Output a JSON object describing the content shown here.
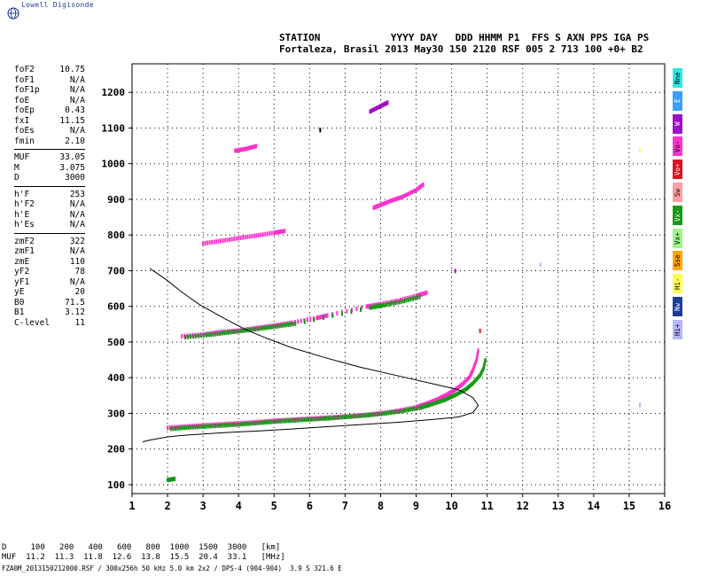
{
  "logo_text": "Lowell Digisonde",
  "header": {
    "line1": "STATION            YYYY DAY   DDD HHMM P1  FFS S AXN PPS IGA PS",
    "line2": "Fortaleza, Brasil 2013 May30 150 2120 RSF 005 2 713 100 +0+ B2"
  },
  "params_group1": [
    {
      "name": "foF2",
      "value": "10.75"
    },
    {
      "name": "foF1",
      "value": "N/A"
    },
    {
      "name": "foF1p",
      "value": "N/A"
    },
    {
      "name": "foE",
      "value": "N/A"
    },
    {
      "name": "foEp",
      "value": "0.43"
    },
    {
      "name": "fxI",
      "value": "11.15"
    },
    {
      "name": "foEs",
      "value": "N/A"
    },
    {
      "name": "fmin",
      "value": "2.10"
    }
  ],
  "params_group2": [
    {
      "name": "MUF",
      "value": "33.05"
    },
    {
      "name": "M",
      "value": "3.075"
    },
    {
      "name": "D",
      "value": "3000"
    }
  ],
  "params_group3": [
    {
      "name": "h'F",
      "value": "253"
    },
    {
      "name": "h'F2",
      "value": "N/A"
    },
    {
      "name": "h'E",
      "value": "N/A"
    },
    {
      "name": "h'Es",
      "value": "N/A"
    }
  ],
  "params_group4": [
    {
      "name": "zmF2",
      "value": "322"
    },
    {
      "name": "zmF1",
      "value": "N/A"
    },
    {
      "name": "zmE",
      "value": "110"
    },
    {
      "name": "yF2",
      "value": "78"
    },
    {
      "name": "yF1",
      "value": "N/A"
    },
    {
      "name": "yE",
      "value": "20"
    },
    {
      "name": "B0",
      "value": "71.5"
    },
    {
      "name": "B1",
      "value": "3.12"
    },
    {
      "name": "C-level",
      "value": "11"
    }
  ],
  "legend": [
    {
      "label": "Nne",
      "color": "#2ee6e6"
    },
    {
      "label": "E",
      "color": "#3aa0ff"
    },
    {
      "label": "W",
      "color": "#a010c8"
    },
    {
      "label": "Vo-",
      "color": "#ff33cc"
    },
    {
      "label": "Vo+",
      "color": "#e01020"
    },
    {
      "label": "Sw",
      "color": "#ff9da0"
    },
    {
      "label": "Vx-",
      "color": "#159a15"
    },
    {
      "label": "Vx+",
      "color": "#9ef58c"
    },
    {
      "label": "Sse",
      "color": "#ffa400"
    },
    {
      "label": "Hi-",
      "color": "#ffff55"
    },
    {
      "label": "Nw",
      "color": "#1c3d9a"
    },
    {
      "label": "Hi+",
      "color": "#b6b6ff"
    }
  ],
  "footer": {
    "d_row": "D     100   200   400   600   800  1000  1500  3000   [km]",
    "muf_row": "MUF  11.2  11.3  11.8  12.6  13.8  15.5  20.4  33.1   [MHz]",
    "file_row": "FZA0M_2013150212000.RSF / 300x256h 50 kHz 5.0 km 2x2 / DPS-4 (904-904)  3.9 S 321.6 E"
  },
  "chart_data": {
    "type": "scatter",
    "xlim": [
      1,
      16
    ],
    "ylim": [
      75,
      1280
    ],
    "x_ticks": [
      1,
      2,
      3,
      4,
      5,
      6,
      7,
      8,
      9,
      10,
      11,
      12,
      13,
      14,
      15,
      16
    ],
    "y_ticks": [
      100,
      200,
      300,
      400,
      500,
      600,
      700,
      800,
      900,
      1000,
      1100,
      1200
    ],
    "grid": true,
    "profile": [
      [
        10.75,
        322
      ],
      [
        10.6,
        344
      ],
      [
        10.2,
        366
      ],
      [
        9.5,
        382
      ],
      [
        8.5,
        405
      ],
      [
        7.4,
        430
      ],
      [
        6.4,
        457
      ],
      [
        5.5,
        484
      ],
      [
        4.8,
        510
      ],
      [
        4.2,
        535
      ],
      [
        3.6,
        566
      ],
      [
        2.9,
        605
      ],
      [
        2.4,
        640
      ],
      [
        2.0,
        672
      ],
      [
        1.7,
        693
      ],
      [
        1.5,
        706
      ],
      [
        10.75,
        322
      ],
      [
        10.6,
        302
      ],
      [
        10.2,
        290
      ],
      [
        9.5,
        283
      ],
      [
        8.5,
        275
      ],
      [
        7.4,
        268
      ],
      [
        6.4,
        262
      ],
      [
        5.5,
        256
      ],
      [
        4.6,
        251
      ],
      [
        3.8,
        247
      ],
      [
        3.0,
        242
      ],
      [
        2.4,
        238
      ],
      [
        2.0,
        234
      ],
      [
        1.5,
        225
      ],
      [
        1.3,
        220
      ]
    ],
    "traces": [
      {
        "color": "#ff33cc",
        "points": [
          [
            2.0,
            258
          ],
          [
            2.5,
            262
          ],
          [
            3.0,
            265
          ],
          [
            3.5,
            268
          ],
          [
            4.0,
            271
          ],
          [
            4.5,
            274
          ],
          [
            5.0,
            278
          ],
          [
            5.5,
            281
          ],
          [
            6.0,
            284
          ],
          [
            6.5,
            287
          ],
          [
            7.0,
            290
          ],
          [
            7.5,
            294
          ],
          [
            8.0,
            299
          ],
          [
            8.5,
            306
          ],
          [
            9.0,
            316
          ],
          [
            9.3,
            326
          ],
          [
            9.6,
            338
          ],
          [
            9.9,
            353
          ],
          [
            10.1,
            365
          ],
          [
            10.3,
            380
          ],
          [
            10.5,
            400
          ],
          [
            10.6,
            420
          ],
          [
            10.7,
            448
          ],
          [
            10.75,
            475
          ]
        ]
      },
      {
        "color": "#159a15",
        "points": [
          [
            2.1,
            255
          ],
          [
            2.6,
            259
          ],
          [
            3.1,
            262
          ],
          [
            3.6,
            265
          ],
          [
            4.1,
            268
          ],
          [
            4.6,
            272
          ],
          [
            5.1,
            276
          ],
          [
            5.6,
            279
          ],
          [
            6.1,
            282
          ],
          [
            6.6,
            285
          ],
          [
            7.1,
            289
          ],
          [
            7.6,
            293
          ],
          [
            8.1,
            298
          ],
          [
            8.6,
            305
          ],
          [
            9.1,
            314
          ],
          [
            9.4,
            323
          ],
          [
            9.8,
            336
          ],
          [
            10.1,
            350
          ],
          [
            10.4,
            366
          ],
          [
            10.6,
            383
          ],
          [
            10.8,
            405
          ],
          [
            10.9,
            425
          ],
          [
            10.95,
            448
          ]
        ]
      },
      {
        "color": "#ff33cc",
        "points": [
          [
            2.4,
            515
          ],
          [
            3.0,
            520
          ],
          [
            3.5,
            527
          ],
          [
            4.0,
            531
          ],
          [
            4.5,
            538
          ],
          [
            5.0,
            545
          ],
          [
            5.5,
            553
          ],
          [
            6.2,
            566
          ],
          [
            6.5,
            573
          ],
          [
            7.6,
            598
          ],
          [
            8.0,
            605
          ],
          [
            8.5,
            615
          ],
          [
            9.0,
            628
          ],
          [
            9.3,
            637
          ]
        ]
      },
      {
        "color": "#159a15",
        "points": [
          [
            2.5,
            512
          ],
          [
            3.1,
            518
          ],
          [
            3.6,
            524
          ],
          [
            4.1,
            530
          ],
          [
            4.6,
            536
          ],
          [
            5.1,
            543
          ],
          [
            5.6,
            550
          ],
          [
            7.7,
            595
          ],
          [
            8.1,
            602
          ],
          [
            8.6,
            612
          ],
          [
            9.1,
            625
          ]
        ]
      },
      {
        "color": "#ff33cc",
        "points": [
          [
            3.0,
            775
          ],
          [
            3.5,
            782
          ],
          [
            4.0,
            790
          ],
          [
            4.5,
            797
          ],
          [
            5.0,
            805
          ],
          [
            5.3,
            810
          ]
        ]
      },
      {
        "color": "#ff33cc",
        "points": [
          [
            7.8,
            875
          ],
          [
            8.0,
            883
          ],
          [
            8.3,
            895
          ],
          [
            8.6,
            905
          ],
          [
            9.0,
            925
          ],
          [
            9.2,
            940
          ]
        ]
      },
      {
        "color": "#ff33cc",
        "points": [
          [
            3.9,
            1035
          ],
          [
            4.2,
            1040
          ],
          [
            4.5,
            1048
          ]
        ]
      },
      {
        "color": "#a010c8",
        "points": [
          [
            7.7,
            1145
          ],
          [
            8.0,
            1160
          ],
          [
            8.2,
            1170
          ]
        ]
      },
      {
        "color": "#159a15",
        "points": [
          [
            2.0,
            112
          ],
          [
            2.2,
            115
          ]
        ]
      }
    ],
    "isolated": [
      {
        "x": 6.3,
        "y": 1093,
        "color": "#000000"
      },
      {
        "x": 10.1,
        "y": 698,
        "color": "#a010c8"
      },
      {
        "x": 10.8,
        "y": 530,
        "color": "#e01020"
      },
      {
        "x": 12.5,
        "y": 715,
        "color": "#b6b6ff"
      },
      {
        "x": 15.3,
        "y": 1035,
        "color": "#ffff55"
      },
      {
        "x": 15.3,
        "y": 322,
        "color": "#b6b6ff"
      }
    ]
  }
}
